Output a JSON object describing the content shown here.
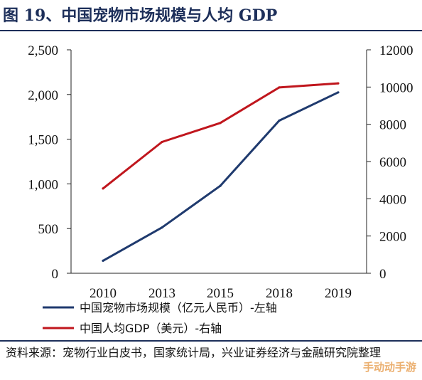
{
  "figure": {
    "title": "图 19、中国宠物市场规模与人均 GDP",
    "source": "资料来源：宠物行业白皮书，国家统计局，兴业证券经济与金融研究院整理",
    "watermark": "手动动手游"
  },
  "chart_data": {
    "type": "line",
    "title": "",
    "x": [
      "2010",
      "2013",
      "2015",
      "2018",
      "2019"
    ],
    "series": [
      {
        "name": "中国宠物市场规模（亿元人民币）-左轴",
        "axis": "left",
        "color": "#1f3a6e",
        "values": [
          140,
          512,
          978,
          1708,
          2024
        ]
      },
      {
        "name": "中国人均GDP（美元）-右轴",
        "axis": "right",
        "color": "#c0161d",
        "values": [
          4550,
          7050,
          8070,
          9980,
          10200
        ]
      }
    ],
    "y_left": {
      "ylim": [
        0,
        2500
      ],
      "ticks": [
        "0",
        "500",
        "1,000",
        "1,500",
        "2,000",
        "2,500"
      ],
      "values": [
        0,
        500,
        1000,
        1500,
        2000,
        2500
      ]
    },
    "y_right": {
      "ylim": [
        0,
        12000
      ],
      "ticks": [
        "0",
        "2000",
        "4000",
        "6000",
        "8000",
        "10000",
        "12000"
      ],
      "values": [
        0,
        2000,
        4000,
        6000,
        8000,
        10000,
        12000
      ]
    },
    "xlabel": "",
    "ylabel": "",
    "grid": false,
    "legend_position": "bottom"
  }
}
